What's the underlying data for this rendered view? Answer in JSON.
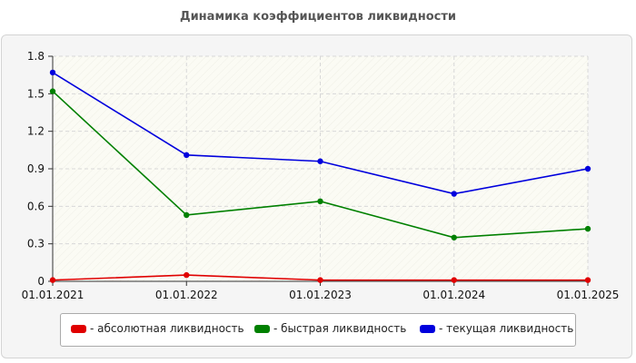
{
  "chart_data": {
    "type": "line",
    "title": "Динамика коэффициентов ликвидности",
    "x": [
      "01.01.2021",
      "01.01.2022",
      "01.01.2023",
      "01.01.2024",
      "01.01.2025"
    ],
    "ylim": [
      0,
      1.8
    ],
    "yticks": [
      "0",
      "0.3",
      "0.6",
      "0.9",
      "1.2",
      "1.5",
      "1.8"
    ],
    "grid": true,
    "legend_position": "bottom",
    "series": [
      {
        "name": "- абсолютная ликвидность",
        "color": "#e00000",
        "values": [
          0.01,
          0.05,
          0.01,
          0.01,
          0.01
        ]
      },
      {
        "name": "- быстрая ликвидность",
        "color": "#008000",
        "values": [
          1.52,
          0.53,
          0.64,
          0.35,
          0.42
        ]
      },
      {
        "name": "- текущая ликвидность",
        "color": "#0000dd",
        "values": [
          1.67,
          1.01,
          0.96,
          0.7,
          0.9
        ]
      }
    ]
  }
}
